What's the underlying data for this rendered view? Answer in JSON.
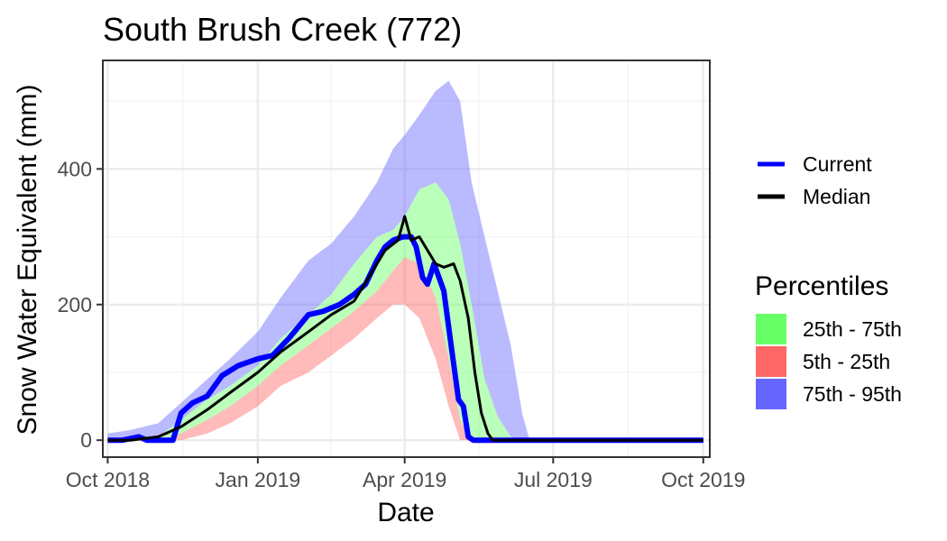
{
  "chart_data": {
    "type": "area",
    "title": "South Brush Creek (772)",
    "xlabel": "Date",
    "ylabel": "Snow Water Equivalent (mm)",
    "xlim": [
      "2018-09-28",
      "2019-10-05"
    ],
    "ylim": [
      -25,
      560
    ],
    "x_ticks": [
      "2018-10-01",
      "2019-01-01",
      "2019-04-01",
      "2019-07-01",
      "2019-10-01"
    ],
    "x_tick_labels": [
      "Oct 2018",
      "Jan 2019",
      "Apr 2019",
      "Jul 2019",
      "Oct 2019"
    ],
    "y_ticks": [
      0,
      200,
      400
    ],
    "y_tick_labels": [
      "0",
      "200",
      "400"
    ],
    "grid": true,
    "legend_position": "right",
    "legend_lines_title": "",
    "legend_fill_title": "Percentiles",
    "colors": {
      "current": "#0000ff",
      "median": "#000000",
      "p25_75": "#66ff66",
      "p5_25": "#ff6666",
      "p75_95": "#6666ff"
    },
    "series": [
      {
        "name": "Current",
        "kind": "line",
        "x": [
          "2018-10-01",
          "2018-10-10",
          "2018-10-20",
          "2018-10-25",
          "2018-11-01",
          "2018-11-10",
          "2018-11-15",
          "2018-11-22",
          "2018-12-01",
          "2018-12-10",
          "2018-12-20",
          "2019-01-01",
          "2019-01-10",
          "2019-01-20",
          "2019-02-01",
          "2019-02-10",
          "2019-02-20",
          "2019-03-01",
          "2019-03-08",
          "2019-03-15",
          "2019-03-20",
          "2019-03-25",
          "2019-03-31",
          "2019-04-05",
          "2019-04-08",
          "2019-04-12",
          "2019-04-15",
          "2019-04-19",
          "2019-04-25",
          "2019-04-30",
          "2019-05-04",
          "2019-05-07",
          "2019-05-10",
          "2019-05-13",
          "2019-05-16",
          "2019-06-01",
          "2019-10-01"
        ],
        "y": [
          0,
          0,
          5,
          0,
          0,
          0,
          40,
          55,
          65,
          95,
          110,
          120,
          125,
          150,
          185,
          190,
          200,
          215,
          230,
          265,
          285,
          295,
          300,
          300,
          285,
          240,
          230,
          260,
          220,
          130,
          60,
          50,
          5,
          0,
          0,
          0,
          0
        ]
      },
      {
        "name": "Median",
        "kind": "line",
        "x": [
          "2018-10-01",
          "2018-10-15",
          "2018-11-01",
          "2018-11-15",
          "2018-12-01",
          "2018-12-15",
          "2019-01-01",
          "2019-01-15",
          "2019-02-01",
          "2019-02-15",
          "2019-03-01",
          "2019-03-10",
          "2019-03-20",
          "2019-03-28",
          "2019-04-01",
          "2019-04-05",
          "2019-04-10",
          "2019-04-15",
          "2019-04-20",
          "2019-04-25",
          "2019-05-01",
          "2019-05-05",
          "2019-05-10",
          "2019-05-14",
          "2019-05-18",
          "2019-05-22",
          "2019-05-25",
          "2019-06-01",
          "2019-10-01"
        ],
        "y": [
          0,
          0,
          5,
          20,
          45,
          70,
          100,
          130,
          160,
          185,
          205,
          240,
          280,
          295,
          330,
          295,
          300,
          280,
          260,
          255,
          260,
          235,
          180,
          100,
          40,
          10,
          0,
          0,
          0
        ]
      },
      {
        "name": "75th - 95th",
        "kind": "band",
        "x": [
          "2018-10-01",
          "2018-10-15",
          "2018-11-01",
          "2018-11-15",
          "2018-12-01",
          "2018-12-15",
          "2019-01-01",
          "2019-01-15",
          "2019-02-01",
          "2019-02-15",
          "2019-03-01",
          "2019-03-15",
          "2019-03-25",
          "2019-04-01",
          "2019-04-10",
          "2019-04-20",
          "2019-04-28",
          "2019-05-05",
          "2019-05-12",
          "2019-05-20",
          "2019-05-28",
          "2019-06-05",
          "2019-06-12",
          "2019-06-16",
          "2019-06-20"
        ],
        "lower": [
          0,
          0,
          5,
          30,
          60,
          80,
          110,
          150,
          185,
          215,
          260,
          300,
          310,
          330,
          370,
          380,
          355,
          290,
          200,
          90,
          35,
          5,
          0,
          0,
          0
        ],
        "upper": [
          10,
          15,
          25,
          55,
          90,
          120,
          160,
          210,
          265,
          290,
          330,
          380,
          430,
          450,
          480,
          515,
          530,
          500,
          380,
          300,
          220,
          140,
          40,
          5,
          0
        ]
      },
      {
        "name": "25th - 75th",
        "kind": "band",
        "x": [
          "2018-10-01",
          "2018-10-15",
          "2018-11-01",
          "2018-11-15",
          "2018-12-01",
          "2018-12-15",
          "2019-01-01",
          "2019-01-15",
          "2019-02-01",
          "2019-02-15",
          "2019-03-01",
          "2019-03-15",
          "2019-03-25",
          "2019-04-01",
          "2019-04-10",
          "2019-04-20",
          "2019-04-28",
          "2019-05-05",
          "2019-05-12",
          "2019-05-20",
          "2019-05-28",
          "2019-06-05"
        ],
        "lower": [
          0,
          0,
          0,
          10,
          30,
          50,
          80,
          110,
          140,
          165,
          190,
          220,
          250,
          270,
          260,
          210,
          120,
          30,
          0,
          0,
          0,
          0
        ],
        "upper": [
          0,
          0,
          5,
          30,
          60,
          80,
          110,
          150,
          185,
          215,
          260,
          300,
          310,
          330,
          370,
          380,
          355,
          290,
          200,
          90,
          35,
          5
        ]
      },
      {
        "name": "5th - 25th",
        "kind": "band",
        "x": [
          "2018-10-01",
          "2018-11-01",
          "2018-11-15",
          "2018-12-01",
          "2018-12-15",
          "2019-01-01",
          "2019-01-15",
          "2019-02-01",
          "2019-02-15",
          "2019-03-01",
          "2019-03-15",
          "2019-03-25",
          "2019-04-01",
          "2019-04-10",
          "2019-04-20",
          "2019-04-28",
          "2019-05-05",
          "2019-05-12",
          "2019-05-20"
        ],
        "lower": [
          0,
          0,
          0,
          10,
          25,
          50,
          80,
          100,
          125,
          150,
          180,
          200,
          200,
          180,
          120,
          50,
          0,
          0,
          0
        ],
        "upper": [
          0,
          0,
          10,
          30,
          50,
          80,
          110,
          140,
          165,
          190,
          220,
          250,
          270,
          260,
          210,
          120,
          30,
          0,
          0
        ]
      }
    ]
  }
}
